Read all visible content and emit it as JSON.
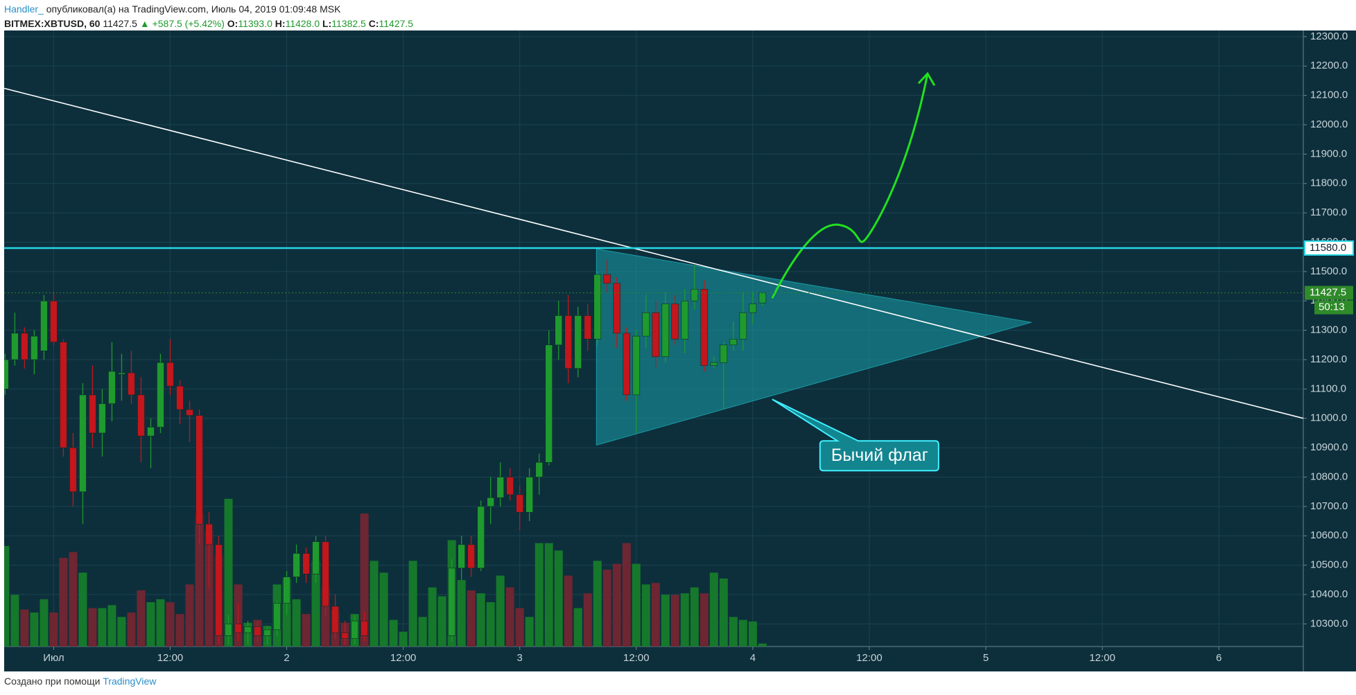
{
  "header": {
    "author": "Handler_",
    "published": "опубликовал(а) на TradingView.com, Июль 04, 2019 01:09:48 MSK",
    "symbol": "BITMEX:XBTUSD, 60",
    "price": "11427.5",
    "change": "▲ +587.5 (+5.42%)",
    "o_label": "O:",
    "o": "11393.0",
    "h_label": "H:",
    "h": "11428.0",
    "l_label": "L:",
    "l": "11382.5",
    "c_label": "C:",
    "c": "11427.5"
  },
  "footer": {
    "text": "Создано при помощи",
    "brand": "TradingView"
  },
  "chart_data": {
    "type": "candlestick",
    "up_color": "#1f9a2e",
    "down_color": "#c3161d",
    "grid": true,
    "xlim": [
      -5.1,
      128.7
    ],
    "ylim": [
      10223,
      12321
    ],
    "xticks": [
      {
        "value": 0,
        "label": "Июл"
      },
      {
        "value": 12,
        "label": "12:00"
      },
      {
        "value": 24,
        "label": "2"
      },
      {
        "value": 36,
        "label": "12:00"
      },
      {
        "value": 48,
        "label": "3"
      },
      {
        "value": 60,
        "label": "12:00"
      },
      {
        "value": 72,
        "label": "4"
      },
      {
        "value": 84,
        "label": "12:00"
      },
      {
        "value": 96,
        "label": "5"
      },
      {
        "value": 108,
        "label": "12:00"
      },
      {
        "value": 120,
        "label": "6"
      }
    ],
    "yticks": [
      {
        "value": 10300,
        "label": "10300.0"
      },
      {
        "value": 10400,
        "label": "10400.0"
      },
      {
        "value": 10500,
        "label": "10500.0"
      },
      {
        "value": 10600,
        "label": "10600.0"
      },
      {
        "value": 10700,
        "label": "10700.0"
      },
      {
        "value": 10800,
        "label": "10800.0"
      },
      {
        "value": 10900,
        "label": "10900.0"
      },
      {
        "value": 11000,
        "label": "11000.0"
      },
      {
        "value": 11100,
        "label": "11100.0"
      },
      {
        "value": 11200,
        "label": "11200.0"
      },
      {
        "value": 11300,
        "label": "11300.0"
      },
      {
        "value": 11400,
        "label": "11400.0"
      },
      {
        "value": 11500,
        "label": "11500.0"
      },
      {
        "value": 11600,
        "label": "11600.0"
      },
      {
        "value": 11700,
        "label": "11700.0"
      },
      {
        "value": 11800,
        "label": "11800.0"
      },
      {
        "value": 11900,
        "label": "11900.0"
      },
      {
        "value": 12000,
        "label": "12000.0"
      },
      {
        "value": 12100,
        "label": "12100.0"
      },
      {
        "value": 12200,
        "label": "12200.0"
      },
      {
        "value": 12300,
        "label": "12300.0"
      }
    ],
    "candles": {
      "x": [
        -5,
        -4,
        -3,
        -2,
        -1,
        0,
        1,
        2,
        3,
        4,
        5,
        6,
        7,
        8,
        9,
        10,
        11,
        12,
        13,
        14,
        15,
        16,
        17,
        18,
        19,
        20,
        21,
        22,
        23,
        24,
        25,
        26,
        27,
        28,
        29,
        30,
        31,
        32,
        41,
        42,
        43,
        44,
        45,
        46,
        47,
        48,
        49,
        50,
        51,
        52,
        53,
        54,
        55,
        56,
        57,
        58,
        59,
        60,
        61,
        62,
        63,
        64,
        65,
        66,
        67,
        68,
        69,
        70,
        71,
        72,
        73
      ],
      "open": [
        11100,
        11200,
        11290,
        11200,
        11230,
        11400,
        11260,
        10900,
        10750,
        11080,
        10950,
        11050,
        11150,
        11155,
        11080,
        10940,
        10970,
        11190,
        11110,
        11030,
        11010,
        10640,
        10570,
        10260,
        10300,
        10270,
        10290,
        10260,
        10280,
        10370,
        10460,
        10540,
        10470,
        10580,
        10360,
        10270,
        10250,
        10310,
        10260,
        10490,
        10570,
        10490,
        10700,
        10730,
        10800,
        10740,
        10680,
        10800,
        10850,
        11250,
        11350,
        11170,
        11350,
        11270,
        11490,
        11460,
        11290,
        11080,
        11280,
        11360,
        11210,
        11390,
        11270,
        11400,
        11440,
        11180,
        11190,
        11250,
        11270,
        11360,
        11393
      ],
      "high": [
        11220,
        11360,
        11310,
        11300,
        11420,
        11430,
        11270,
        10950,
        11120,
        11180,
        11100,
        11260,
        11220,
        11230,
        11140,
        11000,
        11220,
        11270,
        11130,
        11060,
        11030,
        10680,
        10600,
        10330,
        10370,
        10310,
        10310,
        10290,
        10380,
        10480,
        10570,
        10560,
        10600,
        10600,
        10400,
        10310,
        10330,
        10340,
        10520,
        10600,
        10600,
        10720,
        10800,
        10850,
        10830,
        10770,
        10830,
        10880,
        11300,
        11400,
        11420,
        11380,
        11390,
        11500,
        11540,
        11480,
        11310,
        11300,
        11420,
        11400,
        11430,
        11420,
        11440,
        11520,
        11470,
        11210,
        11260,
        11330,
        11430,
        11430,
        11428
      ],
      "low": [
        11080,
        11180,
        11170,
        11150,
        11200,
        11250,
        10870,
        10700,
        10640,
        10900,
        10870,
        10990,
        11060,
        11050,
        10850,
        10830,
        10950,
        11080,
        10980,
        10920,
        10570,
        10420,
        10230,
        10230,
        10240,
        10230,
        10240,
        10230,
        10260,
        10330,
        10440,
        10440,
        10440,
        10330,
        10250,
        10230,
        10230,
        10240,
        10240,
        10450,
        10460,
        10480,
        10640,
        10700,
        10720,
        10620,
        10650,
        10740,
        10840,
        11200,
        11120,
        11140,
        11230,
        11250,
        11430,
        11240,
        11060,
        10950,
        11240,
        11170,
        11190,
        11250,
        11220,
        11370,
        11160,
        11170,
        11030,
        11230,
        11230,
        11320,
        11382.5
      ],
      "close": [
        11200,
        11290,
        11200,
        11280,
        11400,
        11260,
        10900,
        10750,
        11080,
        10950,
        11050,
        11160,
        11155,
        11080,
        10940,
        10970,
        11190,
        11110,
        11030,
        11010,
        10640,
        10570,
        10260,
        10300,
        10270,
        10290,
        10260,
        10280,
        10370,
        10460,
        10540,
        10470,
        10580,
        10360,
        10270,
        10250,
        10310,
        10260,
        10490,
        10570,
        10490,
        10700,
        10730,
        10800,
        10740,
        10680,
        10800,
        10850,
        11250,
        11350,
        11170,
        11350,
        11270,
        11490,
        11460,
        11290,
        11080,
        11280,
        11360,
        11210,
        11390,
        11270,
        11400,
        11440,
        11180,
        11190,
        11250,
        11270,
        11360,
        11390,
        11427.5
      ]
    },
    "volume": {
      "ylim": [
        0,
        417
      ],
      "up_color": "#16782b",
      "down_color": "#6e2632",
      "x": [
        -5,
        -4,
        -3,
        -2,
        -1,
        0,
        1,
        2,
        3,
        4,
        5,
        6,
        7,
        8,
        9,
        10,
        11,
        12,
        13,
        14,
        15,
        16,
        17,
        18,
        19,
        20,
        21,
        22,
        23,
        24,
        25,
        26,
        27,
        28,
        29,
        30,
        31,
        32,
        33,
        34,
        35,
        36,
        37,
        38,
        39,
        40,
        41,
        42,
        43,
        44,
        45,
        46,
        47,
        48,
        49,
        50,
        51,
        52,
        53,
        54,
        55,
        56,
        57,
        58,
        59,
        60,
        61,
        62,
        63,
        64,
        65,
        66,
        67,
        68,
        69,
        70,
        71,
        72,
        73
      ],
      "values": [
        68,
        35,
        25,
        23,
        32,
        23,
        60,
        64,
        50,
        26,
        26,
        28,
        20,
        23,
        38,
        30,
        32,
        30,
        22,
        42,
        90,
        78,
        62,
        100,
        42,
        16,
        18,
        14,
        42,
        46,
        32,
        22,
        58,
        40,
        25,
        16,
        22,
        90,
        58,
        50,
        18,
        10,
        58,
        20,
        40,
        34,
        72,
        45,
        38,
        36,
        30,
        48,
        40,
        26,
        20,
        70,
        70,
        65,
        48,
        26,
        36,
        58,
        52,
        56,
        70,
        56,
        42,
        43,
        35,
        35,
        36,
        40,
        36,
        50,
        46,
        20,
        18,
        17,
        2
      ]
    },
    "level": {
      "value": 11580,
      "label": "11580.0",
      "color": "#27d7e6"
    },
    "last_price": {
      "label": "11427.5",
      "timer": "50:13",
      "color": "#2f8a2a"
    },
    "trendline": {
      "x": [
        -5.1,
        128.7
      ],
      "y": [
        12124,
        11000
      ],
      "color": "#ffffff"
    },
    "triangle": {
      "x": [
        55.9,
        100.7,
        55.9
      ],
      "y": [
        11577,
        11327,
        10909
      ],
      "color": "#1a9ea8"
    },
    "arrow": {
      "x": [
        74.0,
        80.9,
        83.5,
        90.0
      ],
      "y": [
        11409,
        11659,
        11606,
        12174
      ],
      "color": "#22e01f"
    },
    "callout": {
      "text": "Бычий флаг",
      "x": 74,
      "y": 11065,
      "color": "#13858f"
    }
  }
}
